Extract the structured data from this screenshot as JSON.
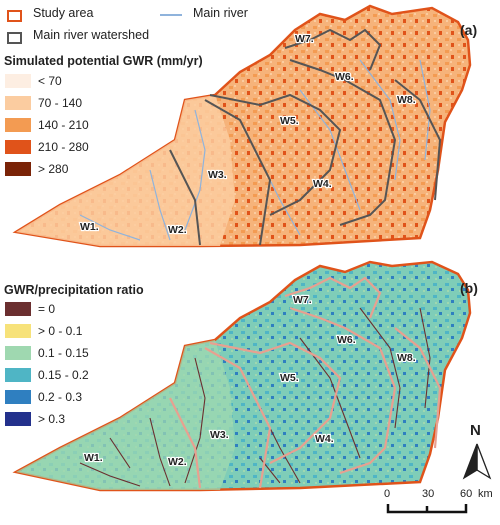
{
  "top_legend": {
    "study_area": "Study area",
    "main_river": "Main river",
    "watershed": "Main river watershed"
  },
  "panel_a": {
    "tag": "(a)",
    "legend_title": "Simulated potential GWR (mm/yr)",
    "classes": [
      {
        "label": "< 70",
        "color": "#fdeee2"
      },
      {
        "label": "70 - 140",
        "color": "#fbcca0"
      },
      {
        "label": "140 - 210",
        "color": "#f39b52"
      },
      {
        "label": "210 - 280",
        "color": "#e0531a"
      },
      {
        "label": "> 280",
        "color": "#7a2307"
      }
    ]
  },
  "panel_b": {
    "tag": "(b)",
    "legend_title": "GWR/precipitation ratio",
    "classes": [
      {
        "label": "= 0",
        "color": "#6b2f30"
      },
      {
        "label": "> 0 - 0.1",
        "color": "#f7e27a"
      },
      {
        "label": "0.1 - 0.15",
        "color": "#9fd8b0"
      },
      {
        "label": "0.15 - 0.2",
        "color": "#4fb5c5"
      },
      {
        "label": "0.2 - 0.3",
        "color": "#2f7fc0"
      },
      {
        "label": "> 0.3",
        "color": "#23318c"
      }
    ]
  },
  "watersheds": [
    "W1.",
    "W2.",
    "W3.",
    "W4.",
    "W5.",
    "W6.",
    "W7.",
    "W8."
  ],
  "scale_bar": {
    "ticks": [
      "0",
      "30",
      "60"
    ],
    "unit": "km"
  },
  "north_label": "N",
  "colors": {
    "study_area": "#e0531a",
    "river": "#8fb3dc",
    "watershed": "#555555"
  }
}
